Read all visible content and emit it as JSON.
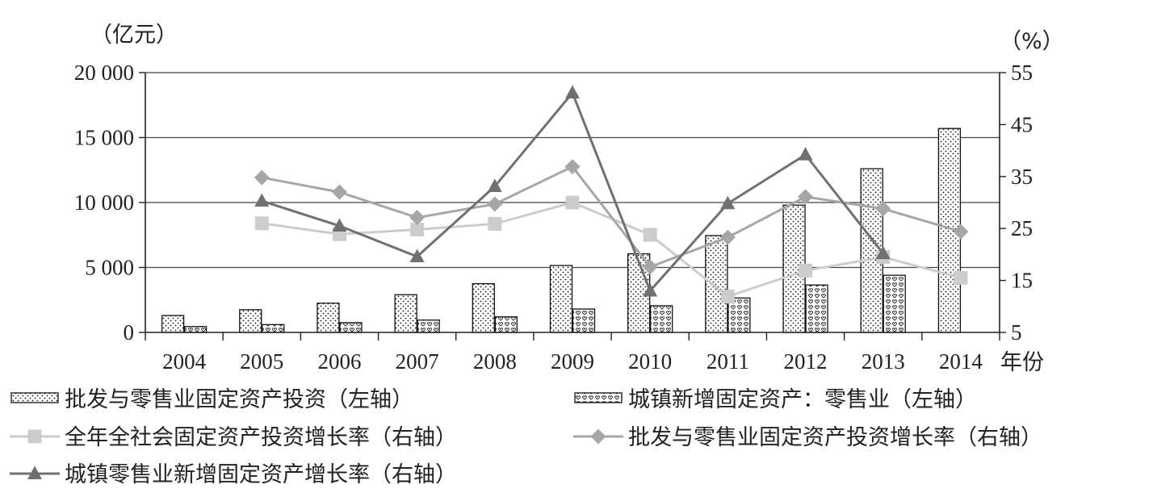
{
  "chart_data": {
    "type": "bar",
    "categories": [
      "2004",
      "2005",
      "2006",
      "2007",
      "2008",
      "2009",
      "2010",
      "2011",
      "2012",
      "2013",
      "2014"
    ],
    "x_unit": "年份",
    "left_axis": {
      "unit": "（亿元）",
      "min": 0,
      "max": 20000,
      "ticks": [
        0,
        5000,
        10000,
        15000,
        20000
      ],
      "tick_labels": [
        "0",
        "5 000",
        "10 000",
        "15 000",
        "20 000"
      ]
    },
    "right_axis": {
      "unit": "（%）",
      "min": 5,
      "max": 55,
      "ticks": [
        5,
        15,
        25,
        35,
        45,
        55
      ],
      "tick_labels": [
        "5",
        "15",
        "25",
        "35",
        "45",
        "55"
      ]
    },
    "grid": "horizontal",
    "bar_series": [
      {
        "name": "批发与零售业固定资产投资（左轴）",
        "axis": "left",
        "pattern": "dots",
        "values": [
          1300,
          1750,
          2250,
          2900,
          3750,
          5150,
          6050,
          7450,
          9800,
          12600,
          15700
        ]
      },
      {
        "name": "城镇新增固定资产：零售业（左轴）",
        "axis": "left",
        "pattern": "hearts",
        "values": [
          450,
          600,
          750,
          950,
          1200,
          1800,
          2050,
          2650,
          3650,
          4400,
          null
        ]
      }
    ],
    "line_series": [
      {
        "name": "全年全社会固定资产投资增长率（右轴）",
        "axis": "right",
        "marker": "square",
        "color": "#cccccc",
        "values": [
          null,
          26.0,
          23.9,
          24.8,
          25.9,
          30.0,
          23.8,
          11.9,
          16.9,
          19.5,
          15.5
        ]
      },
      {
        "name": "批发与零售业固定资产投资增长率（右轴）",
        "axis": "right",
        "marker": "diamond",
        "color": "#a6a6a6",
        "values": [
          null,
          34.8,
          32.0,
          27.1,
          29.7,
          36.9,
          17.6,
          23.3,
          31.1,
          28.8,
          24.4
        ]
      },
      {
        "name": "城镇零售业新增固定资产增长率（右轴）",
        "axis": "right",
        "marker": "triangle",
        "color": "#707070",
        "values": [
          null,
          30.3,
          25.5,
          19.6,
          33.1,
          51.1,
          13.0,
          29.8,
          39.2,
          20.2,
          null
        ]
      }
    ],
    "legend_position": "bottom"
  }
}
